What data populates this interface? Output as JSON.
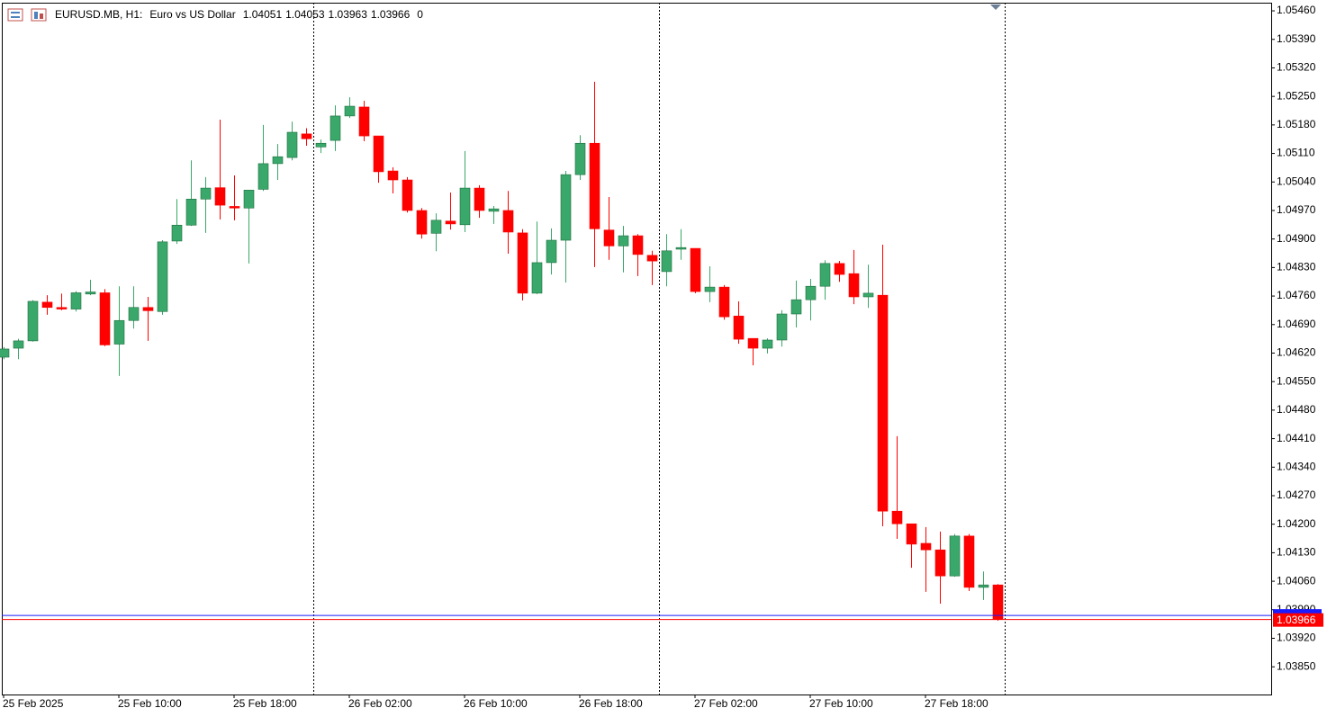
{
  "chart_data": {
    "type": "candlestick",
    "header": {
      "symbol": "EURUSD.MB, H1:",
      "description": "Euro vs US Dollar",
      "ohlc": [
        1.04051,
        1.04053,
        1.03963,
        1.03966
      ],
      "volume": 0
    },
    "categories": [
      "25 Feb 2025",
      null,
      null,
      null,
      null,
      null,
      null,
      null,
      "25 Feb 10:00",
      null,
      null,
      null,
      null,
      null,
      null,
      null,
      "25 Feb 18:00",
      null,
      null,
      null,
      null,
      null,
      null,
      null,
      "26 Feb 02:00",
      null,
      null,
      null,
      null,
      null,
      null,
      null,
      "26 Feb 10:00",
      null,
      null,
      null,
      null,
      null,
      null,
      null,
      "26 Feb 18:00",
      null,
      null,
      null,
      null,
      null,
      null,
      null,
      "27 Feb 02:00",
      null,
      null,
      null,
      null,
      null,
      null,
      null,
      "27 Feb 10:00",
      null,
      null,
      null,
      null,
      null,
      null,
      null,
      "27 Feb 18:00",
      null,
      null,
      null,
      null,
      null
    ],
    "open": [
      1.0461,
      1.04632,
      1.0465,
      1.04745,
      1.04732,
      1.04728,
      1.04765,
      1.04768,
      1.04642,
      1.047,
      1.04732,
      1.04722,
      1.04895,
      1.04934,
      1.04998,
      1.05026,
      1.0498,
      1.04976,
      1.05022,
      1.05085,
      1.051,
      1.05158,
      1.05126,
      1.05142,
      1.05202,
      1.05224,
      1.05153,
      1.05067,
      1.05045,
      1.0497,
      1.04914,
      1.04944,
      1.04935,
      1.05025,
      1.04968,
      1.0497,
      1.04915,
      1.04767,
      1.04842,
      1.04897,
      1.05058,
      1.05135,
      1.04922,
      1.04883,
      1.04908,
      1.0486,
      1.0482,
      1.04875,
      1.04877,
      1.04771,
      1.04782,
      1.04711,
      1.04656,
      1.04632,
      1.04652,
      1.04716,
      1.04751,
      1.04784,
      1.0484,
      1.04815,
      1.04758,
      1.04762,
      1.04232,
      1.04201,
      1.04153,
      1.04137,
      1.04073,
      1.04171,
      1.04045,
      1.04051
    ],
    "high": [
      1.04635,
      1.04655,
      1.0475,
      1.04762,
      1.04766,
      1.04772,
      1.048,
      1.04777,
      1.04784,
      1.04784,
      1.04758,
      1.04897,
      1.04998,
      1.05093,
      1.05052,
      1.05193,
      1.05056,
      1.0502,
      1.0518,
      1.05133,
      1.05188,
      1.05172,
      1.05144,
      1.05228,
      1.05248,
      1.05239,
      1.05153,
      1.05076,
      1.05052,
      1.04976,
      1.04963,
      1.05014,
      1.05116,
      1.05032,
      1.04981,
      1.05018,
      1.04924,
      1.04943,
      1.04926,
      1.05067,
      1.05155,
      1.05286,
      1.05003,
      1.04932,
      1.04912,
      1.04871,
      1.04912,
      1.04924,
      1.04877,
      1.04833,
      1.04787,
      1.04747,
      1.04656,
      1.04656,
      1.04725,
      1.04798,
      1.04802,
      1.04848,
      1.04846,
      1.04873,
      1.04837,
      1.04886,
      1.04416,
      1.04201,
      1.04193,
      1.04182,
      1.04176,
      1.04176,
      1.04084,
      1.04053
    ],
    "low": [
      1.04605,
      1.04605,
      1.04648,
      1.04714,
      1.04725,
      1.04722,
      1.04762,
      1.04637,
      1.04564,
      1.0468,
      1.0465,
      1.04714,
      1.04888,
      1.04932,
      1.04915,
      1.04948,
      1.04946,
      1.0484,
      1.05018,
      1.05045,
      1.05093,
      1.05129,
      1.05111,
      1.05116,
      1.05197,
      1.0514,
      1.05038,
      1.05012,
      1.04965,
      1.04901,
      1.0487,
      1.04923,
      1.04917,
      1.04952,
      1.04937,
      1.04864,
      1.04749,
      1.04765,
      1.04813,
      1.04793,
      1.05045,
      1.04831,
      1.04849,
      1.04818,
      1.04809,
      1.04787,
      1.04784,
      1.04849,
      1.04767,
      1.04745,
      1.04702,
      1.04643,
      1.0459,
      1.04619,
      1.04636,
      1.04683,
      1.047,
      1.04751,
      1.04795,
      1.0474,
      1.04731,
      1.04195,
      1.04164,
      1.04093,
      1.04034,
      1.04005,
      1.04071,
      1.04036,
      1.04014,
      1.03963
    ],
    "close": [
      1.0463,
      1.0465,
      1.04747,
      1.04732,
      1.04728,
      1.04768,
      1.0477,
      1.0464,
      1.047,
      1.04732,
      1.04724,
      1.04893,
      1.04934,
      1.04998,
      1.05025,
      1.04983,
      1.04976,
      1.0502,
      1.05085,
      1.05102,
      1.05162,
      1.05146,
      1.05135,
      1.05202,
      1.05226,
      1.05153,
      1.05065,
      1.05045,
      1.0497,
      1.04912,
      1.04946,
      1.04937,
      1.05025,
      1.0497,
      1.04974,
      1.04917,
      1.04767,
      1.04842,
      1.04897,
      1.05058,
      1.05135,
      1.04925,
      1.04883,
      1.04908,
      1.04862,
      1.04846,
      1.04871,
      1.04879,
      1.04771,
      1.04782,
      1.04709,
      1.04654,
      1.04632,
      1.04652,
      1.04716,
      1.04751,
      1.04784,
      1.0484,
      1.04813,
      1.04758,
      1.04767,
      1.04232,
      1.04201,
      1.04151,
      1.04137,
      1.04073,
      1.04171,
      1.04045,
      1.04051,
      1.03966
    ],
    "up_color": "#3aa86a",
    "down_color": "#ff0000",
    "ylim": [
      1.03782,
      1.0548
    ],
    "yticks": [
      {
        "value": 1.0385,
        "label": "1.03850"
      },
      {
        "value": 1.0392,
        "label": "1.03920"
      },
      {
        "value": 1.0399,
        "label": "1.03990"
      },
      {
        "value": 1.0406,
        "label": "1.04060"
      },
      {
        "value": 1.0413,
        "label": "1.04130"
      },
      {
        "value": 1.042,
        "label": "1.04200"
      },
      {
        "value": 1.0427,
        "label": "1.04270"
      },
      {
        "value": 1.0434,
        "label": "1.04340"
      },
      {
        "value": 1.0441,
        "label": "1.04410"
      },
      {
        "value": 1.0448,
        "label": "1.04480"
      },
      {
        "value": 1.0455,
        "label": "1.04550"
      },
      {
        "value": 1.0462,
        "label": "1.04620"
      },
      {
        "value": 1.0469,
        "label": "1.04690"
      },
      {
        "value": 1.0476,
        "label": "1.04760"
      },
      {
        "value": 1.0483,
        "label": "1.04830"
      },
      {
        "value": 1.049,
        "label": "1.04900"
      },
      {
        "value": 1.0497,
        "label": "1.04970"
      },
      {
        "value": 1.0504,
        "label": "1.05040"
      },
      {
        "value": 1.0511,
        "label": "1.05110"
      },
      {
        "value": 1.0518,
        "label": "1.05180"
      },
      {
        "value": 1.0525,
        "label": "1.05250"
      },
      {
        "value": 1.0532,
        "label": "1.05320"
      },
      {
        "value": 1.0539,
        "label": "1.05390"
      },
      {
        "value": 1.0546,
        "label": "1.05460"
      }
    ],
    "ask_line": 1.03976,
    "bid_line": 1.03966
  }
}
